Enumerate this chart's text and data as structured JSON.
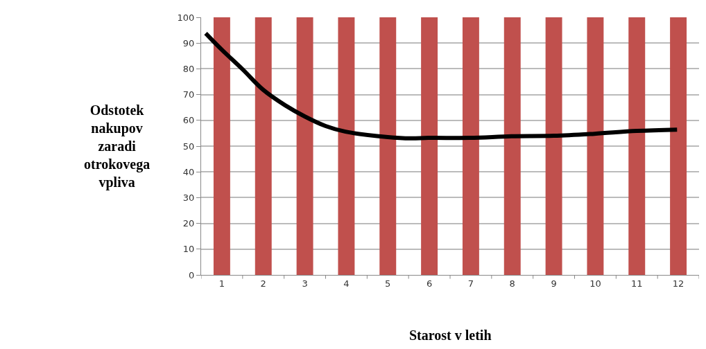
{
  "chart_data": {
    "type": "bar",
    "xlabel": "Starost v letih",
    "ylabel": "Odstotek\nnakupov\nzaradi\notrokovega\nvpliva",
    "x": [
      1,
      2,
      3,
      4,
      5,
      6,
      7,
      8,
      9,
      10,
      11,
      12
    ],
    "xlim": [
      0.5,
      12.5
    ],
    "xticks": [
      1,
      2,
      3,
      4,
      5,
      6,
      7,
      8,
      9,
      10,
      11,
      12
    ],
    "ylim": [
      0,
      100
    ],
    "yticks": [
      0,
      10,
      20,
      30,
      40,
      50,
      60,
      70,
      80,
      90,
      100
    ],
    "grid": "y",
    "series": [
      {
        "color": "#c0504d",
        "values": [
          100,
          100,
          100,
          100,
          100,
          100,
          100,
          100,
          100,
          100,
          100,
          100
        ]
      },
      {
        "type": "line",
        "color": "#000000",
        "marker": "none",
        "line_style": "solid",
        "x": [
          0.61,
          1,
          1.5,
          2,
          2.52,
          3,
          3.5,
          3.98,
          5,
          5.55,
          5.98,
          6.98,
          7.98,
          9,
          9.98,
          11,
          11.97
        ],
        "values": [
          93.8,
          87.4,
          79.8,
          71.8,
          65.9,
          61.5,
          57.8,
          55.6,
          53.5,
          53.0,
          53.2,
          53.2,
          53.8,
          54.0,
          54.8,
          55.9,
          56.4
        ]
      }
    ]
  }
}
